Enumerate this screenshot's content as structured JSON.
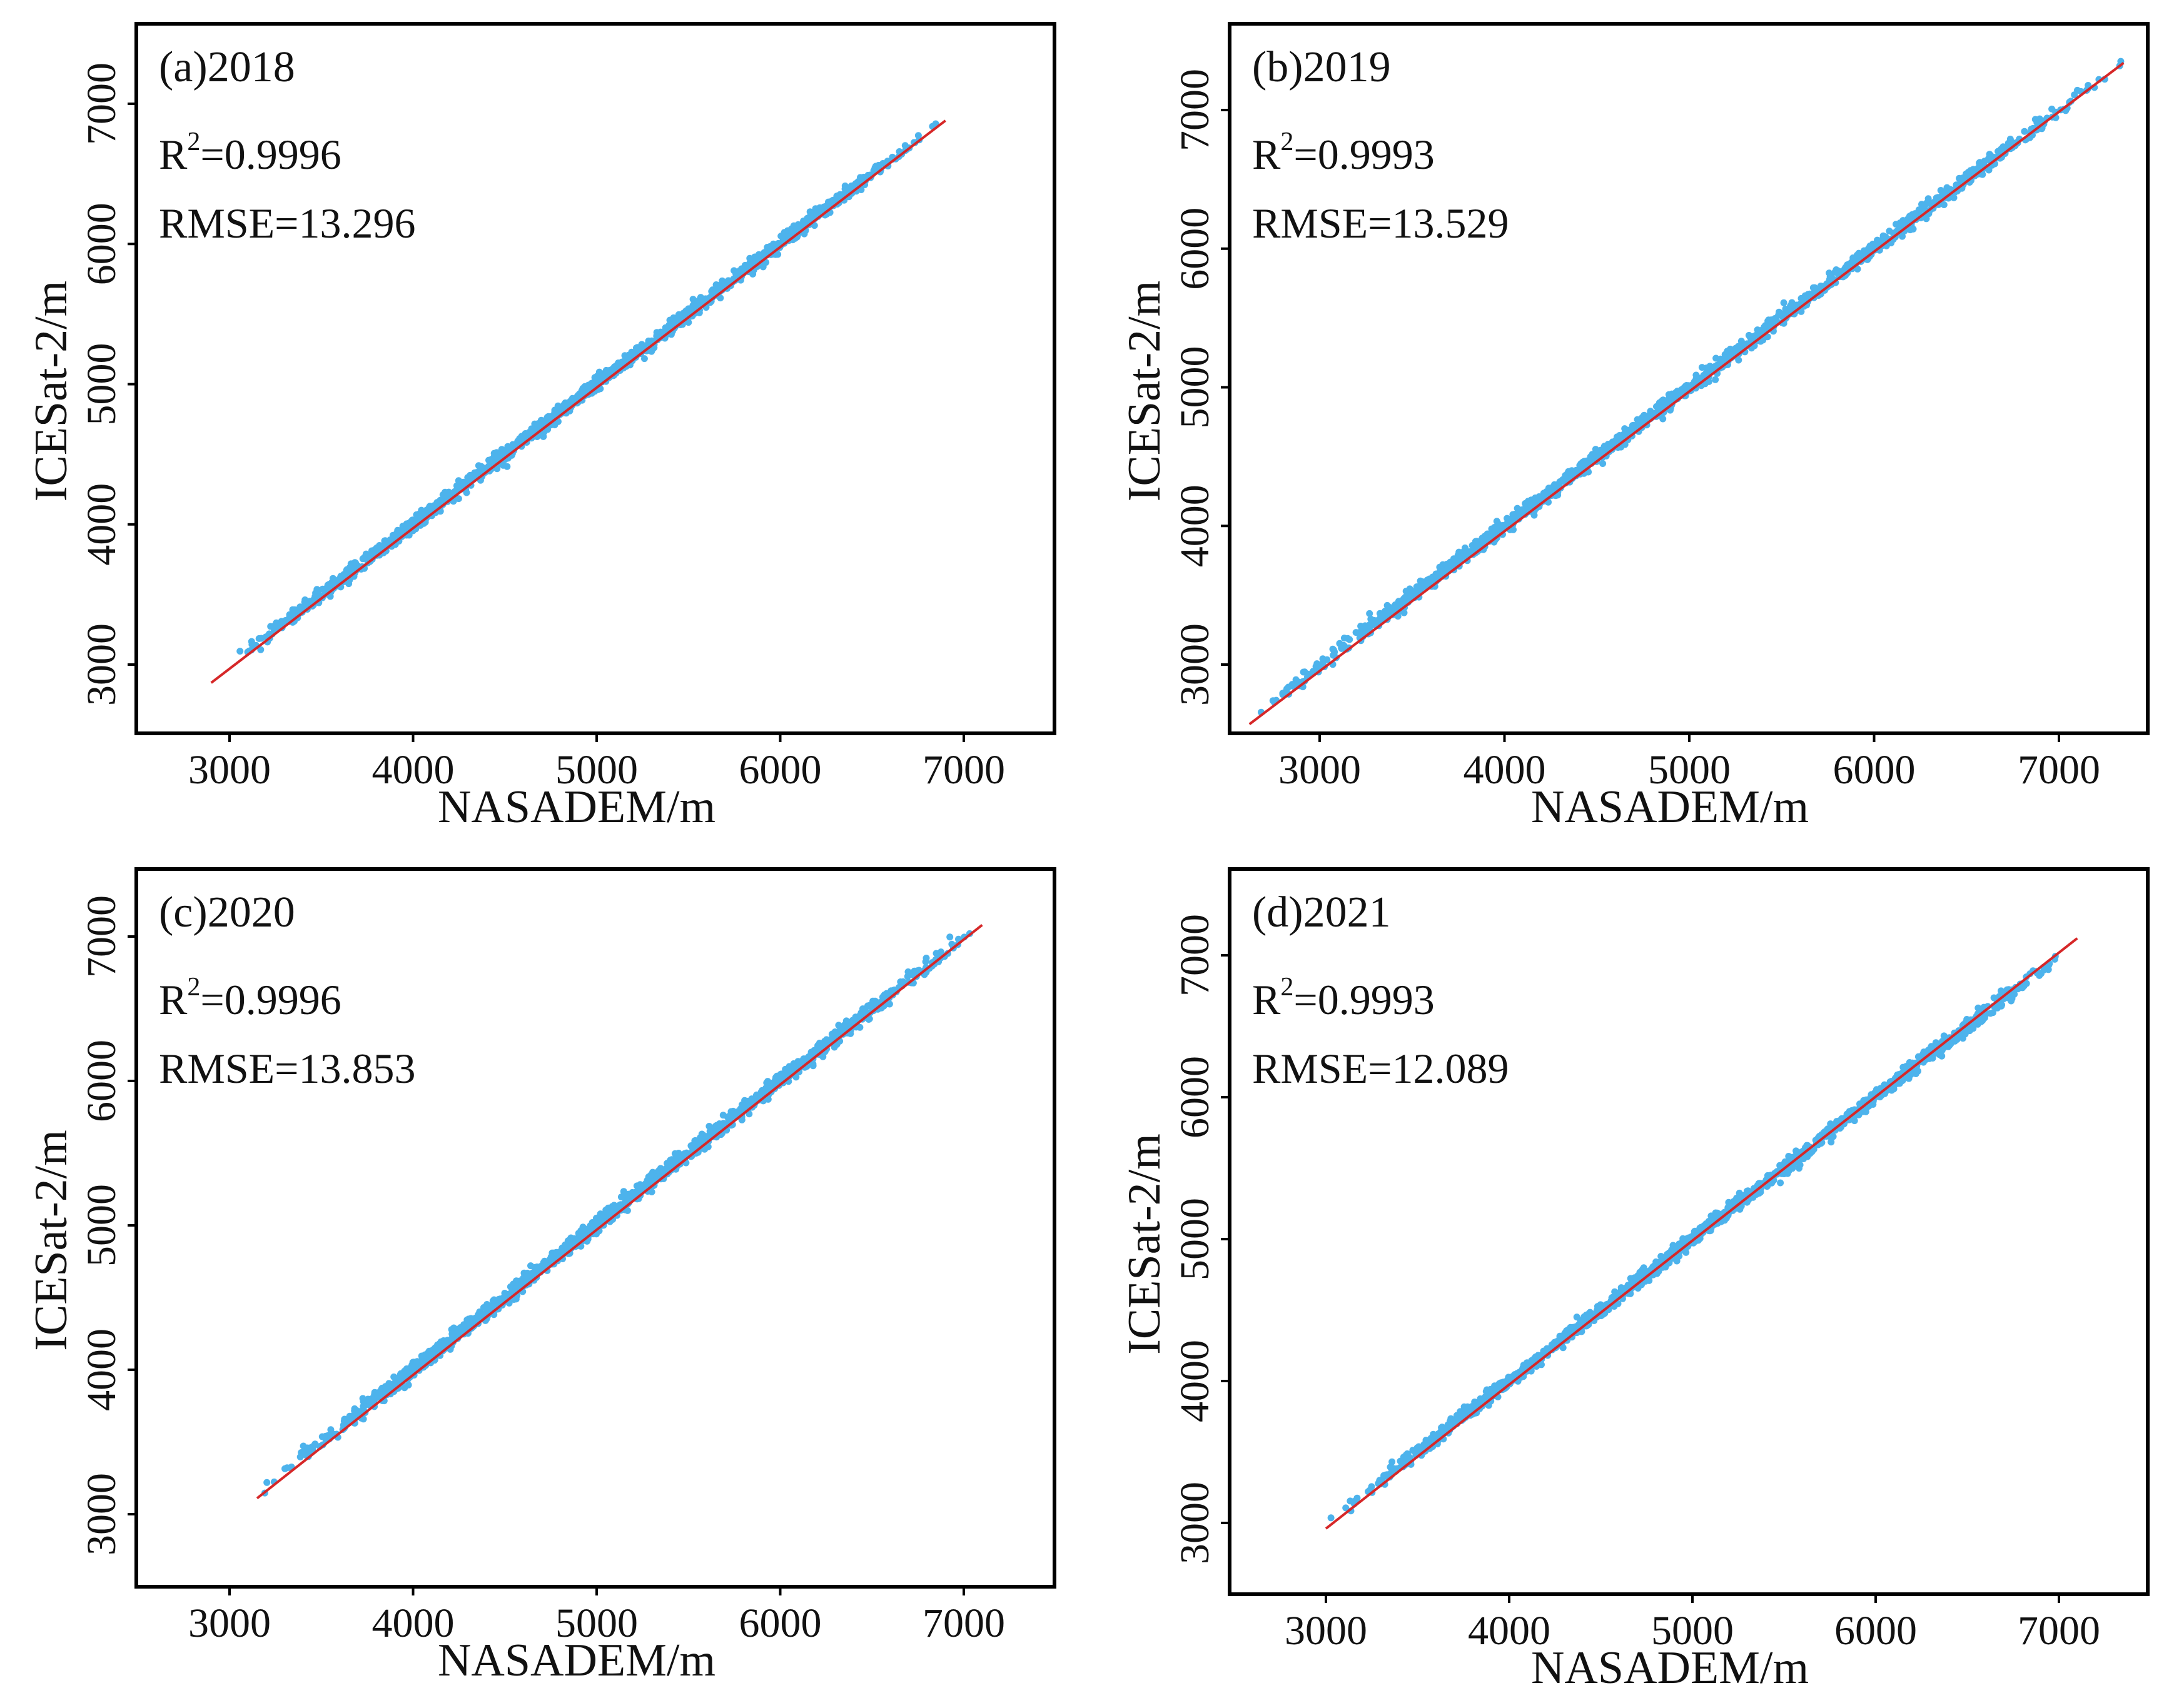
{
  "colors": {
    "points": "#4db3ec",
    "fit_line": "#d62728",
    "frame": "#000000"
  },
  "chart_data": [
    {
      "type": "scatter",
      "panel_label": "(a)2018",
      "r2_prefix": "R",
      "r2_sup": "2",
      "r2_value": "=0.9996",
      "rmse_text": "RMSE=13.296",
      "xlabel": "NASADEM/m",
      "ylabel": "ICESat-2/m",
      "xlim": [
        2500,
        7500
      ],
      "ylim": [
        2500,
        7500
      ],
      "xticks": [
        "3000",
        "4000",
        "5000",
        "6000",
        "7000"
      ],
      "yticks": [
        "3000",
        "4000",
        "5000",
        "6000",
        "7000"
      ],
      "tick_values": [
        3000,
        4000,
        5000,
        6000,
        7000
      ],
      "data_range": [
        2900,
        6900
      ],
      "fit_line": {
        "x": [
          2900,
          6900
        ],
        "y": [
          2870,
          6880
        ]
      },
      "scatter_band": {
        "x_range": [
          2900,
          6900
        ],
        "spread": 45
      }
    },
    {
      "type": "scatter",
      "panel_label": "(b)2019",
      "r2_prefix": "R",
      "r2_sup": "2",
      "r2_value": "=0.9993",
      "rmse_text": "RMSE=13.529",
      "xlabel": "NASADEM/m",
      "ylabel": "ICESat-2/m",
      "xlim": [
        2500,
        7500
      ],
      "ylim": [
        2500,
        7500
      ],
      "xticks": [
        "3000",
        "4000",
        "5000",
        "6000",
        "7000"
      ],
      "yticks": [
        "3000",
        "4000",
        "5000",
        "6000",
        "7000"
      ],
      "tick_values": [
        3000,
        4000,
        5000,
        6000,
        7000
      ],
      "data_range": [
        2650,
        7350
      ],
      "fit_line": {
        "x": [
          2620,
          7350
        ],
        "y": [
          2570,
          7340
        ]
      },
      "scatter_band": {
        "x_range": [
          2650,
          7350
        ],
        "spread": 50
      }
    },
    {
      "type": "scatter",
      "panel_label": "(c)2020",
      "r2_prefix": "R",
      "r2_sup": "2",
      "r2_value": "=0.9996",
      "rmse_text": "RMSE=13.853",
      "xlabel": "NASADEM/m",
      "ylabel": "ICESat-2/m",
      "xlim": [
        2500,
        7500
      ],
      "ylim": [
        2500,
        7500
      ],
      "xticks": [
        "3000",
        "4000",
        "5000",
        "6000",
        "7000"
      ],
      "yticks": [
        "3000",
        "4000",
        "5000",
        "6000",
        "7000"
      ],
      "tick_values": [
        3000,
        4000,
        5000,
        6000,
        7000
      ],
      "data_range": [
        3150,
        7100
      ],
      "fit_line": {
        "x": [
          3150,
          7100
        ],
        "y": [
          3110,
          7080
        ]
      },
      "scatter_band": {
        "x_range": [
          3150,
          7100
        ],
        "spread": 48
      }
    },
    {
      "type": "scatter",
      "panel_label": "(d)2021",
      "r2_prefix": "R",
      "r2_sup": "2",
      "r2_value": "=0.9993",
      "rmse_text": "RMSE=12.089",
      "xlabel": "NASADEM/m",
      "ylabel": "ICESat-2/m",
      "xlim": [
        2500,
        7500
      ],
      "ylim": [
        2500,
        7500
      ],
      "xticks": [
        "3000",
        "4000",
        "5000",
        "6000",
        "7000"
      ],
      "yticks": [
        "3000",
        "4000",
        "5000",
        "6000",
        "7000"
      ],
      "tick_values": [
        3000,
        4000,
        5000,
        6000,
        7000
      ],
      "data_range": [
        3000,
        7100
      ],
      "fit_line": {
        "x": [
          3000,
          7100
        ],
        "y": [
          2960,
          7120
        ]
      },
      "scatter_band": {
        "x_range": [
          3000,
          7100
        ],
        "spread": 45
      }
    }
  ]
}
